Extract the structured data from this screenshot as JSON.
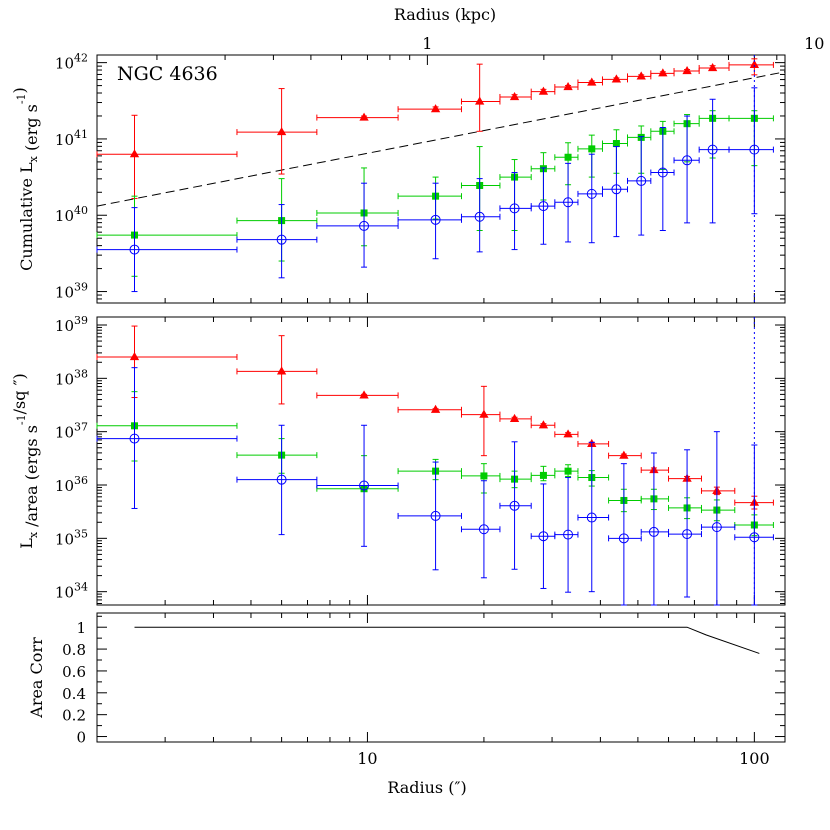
{
  "chart_data": {
    "type": "scatter",
    "x_scale": "log",
    "xlabel_bottom": "Radius (″)",
    "xlabel_top": "Radius (kpc)",
    "x_ticklabels_bottom": [
      "10",
      "100"
    ],
    "x_ticklabels_top": [
      "1",
      "10"
    ],
    "xlim": [
      2.0,
      120.0
    ],
    "kpc_per_arcsec": 0.07,
    "colors": {
      "red": "#ff0000",
      "green": "#00cc00",
      "blue": "#0000ff",
      "dashed": "#000000",
      "vline": "#0000ff"
    },
    "bin_edges": [
      1.0,
      4.0,
      7.4,
      12.0,
      17.5,
      22.0,
      26.5,
      30.5,
      35.0,
      40.0,
      47.0,
      54.0,
      62.0,
      71.0,
      82.0,
      92.0,
      112.0
    ],
    "x_centers": [
      2.5,
      6.0,
      9.8,
      15.0,
      19.5,
      24.0,
      28.5,
      33.0,
      38.0,
      44.0,
      51.0,
      58.0,
      67.0,
      78.0,
      100.0
    ],
    "vertical_line_x": 100.0,
    "panels": [
      {
        "id": "cumulative",
        "ylabel": "Cumulative L",
        "ylabel_sub": "x",
        "ylabel_rest": "(erg s",
        "ylabel_sup": "-1",
        "ylabel_end": ")",
        "y_scale": "log",
        "ylim_log": [
          38.85,
          42.1
        ],
        "y_tick_exponents": [
          "39",
          "40",
          "41",
          "42"
        ],
        "annotation": "NGC 4636",
        "dashed_line": {
          "x": [
            2.0,
            120.0
          ],
          "y_log": [
            40.12,
            41.88
          ]
        },
        "series": [
          {
            "color": "red",
            "marker": "triangle-filled",
            "y_log": [
              40.8,
              41.09,
              41.28,
              41.39,
              41.49,
              41.55,
              41.62,
              41.68,
              41.74,
              41.78,
              41.82,
              41.86,
              41.89,
              41.93
            ],
            "x_idx": [
              0,
              1,
              2,
              3,
              4,
              5,
              6,
              7,
              8,
              9,
              10,
              11,
              12,
              13,
              14
            ],
            "y_log_full": [
              40.8,
              41.09,
              41.28,
              41.39,
              41.49,
              41.55,
              41.62,
              41.68,
              41.74,
              41.78,
              41.82,
              41.86,
              41.89,
              41.93,
              41.97
            ],
            "err_lo_log": [
              40.22,
              40.54,
              41.26,
              41.36,
              41.1,
              41.52,
              41.59,
              41.66,
              41.72,
              41.76,
              41.8,
              41.84,
              41.87,
              41.9,
              41.84
            ],
            "err_hi_log": [
              41.31,
              41.66,
              41.3,
              41.42,
              41.98,
              41.58,
              41.65,
              41.7,
              41.76,
              41.8,
              41.84,
              41.88,
              41.91,
              41.96,
              42.05
            ]
          },
          {
            "color": "green",
            "marker": "square-filled",
            "y_log_full": [
              39.74,
              39.93,
              40.03,
              40.25,
              40.39,
              40.5,
              40.61,
              40.76,
              40.87,
              40.94,
              41.02,
              41.1,
              41.2,
              41.27,
              41.27
            ],
            "err_lo_log": [
              39.2,
              39.4,
              39.6,
              39.95,
              39.8,
              39.8,
              40.2,
              40.4,
              40.5,
              40.55,
              40.55,
              40.6,
              40.7,
              40.75,
              40.65
            ],
            "err_hi_log": [
              40.25,
              40.48,
              40.62,
              40.5,
              40.9,
              40.73,
              40.82,
              40.95,
              41.05,
              41.12,
              41.17,
              41.23,
              41.32,
              41.37,
              41.37
            ]
          },
          {
            "color": "blue",
            "marker": "circle-open",
            "y_log_full": [
              39.55,
              39.68,
              39.86,
              39.94,
              39.98,
              40.09,
              40.12,
              40.17,
              40.28,
              40.34,
              40.45,
              40.56,
              40.72,
              40.86,
              40.86
            ],
            "err_lo_log": [
              39.0,
              39.18,
              39.32,
              39.43,
              39.52,
              39.55,
              39.62,
              39.65,
              39.64,
              39.72,
              39.74,
              39.8,
              39.9,
              39.9,
              40.02
            ],
            "err_hi_log": [
              40.1,
              40.14,
              40.42,
              40.42,
              40.48,
              40.56,
              40.62,
              40.68,
              40.8,
              40.9,
              41.03,
              41.15,
              41.3,
              41.52,
              41.67
            ]
          }
        ]
      },
      {
        "id": "surface",
        "ylabel": "L",
        "ylabel_sub": "x",
        "ylabel_rest": "/area (ergs s",
        "ylabel_sup": "-1",
        "ylabel_end": "/sq ″)",
        "y_scale": "log",
        "ylim_log": [
          33.75,
          39.15
        ],
        "y_tick_exponents": [
          "34",
          "35",
          "36",
          "37",
          "38",
          "39"
        ],
        "series": [
          {
            "color": "red",
            "marker": "triangle-filled",
            "y_log_full": [
              38.4,
              38.13,
              37.68,
              37.41,
              37.32,
              37.24,
              37.12,
              36.95,
              36.77,
              36.55,
              36.28,
              36.12,
              35.89,
              35.67
            ],
            "err_lo_log": [
              37.64,
              37.52,
              37.66,
              37.39,
              36.55,
              37.21,
              37.09,
              36.92,
              36.74,
              36.52,
              36.24,
              36.08,
              35.82,
              35.55
            ],
            "err_hi_log": [
              38.98,
              38.8,
              37.7,
              37.43,
              37.85,
              37.27,
              37.15,
              36.98,
              36.8,
              36.58,
              36.32,
              36.16,
              35.96,
              35.79
            ]
          },
          {
            "color": "green",
            "marker": "square-filled",
            "y_log_full": [
              37.11,
              36.56,
              35.93,
              36.26,
              36.17,
              36.11,
              36.18,
              36.26,
              36.14,
              35.71,
              35.74,
              35.57,
              35.53,
              35.25
            ],
            "err_lo_log": [
              36.45,
              36.22,
              35.88,
              36.1,
              35.85,
              35.95,
              36.08,
              36.16,
              35.98,
              35.5,
              35.54,
              35.37,
              35.33,
              35.05
            ],
            "err_hi_log": [
              37.75,
              36.87,
              36.55,
              36.48,
              36.4,
              36.26,
              36.35,
              36.38,
              36.27,
              35.92,
              35.92,
              35.76,
              35.72,
              35.44
            ]
          },
          {
            "color": "blue",
            "marker": "circle-open",
            "y_log_full": [
              36.87,
              36.1,
              35.99,
              35.42,
              35.17,
              35.61,
              35.04,
              35.07,
              35.39,
              35.0,
              35.12,
              35.08,
              35.21,
              35.02
            ],
            "err_lo_log": [
              35.56,
              35.07,
              34.85,
              34.41,
              34.26,
              34.42,
              34.06,
              33.99,
              34.0,
              33.65,
              33.65,
              33.9,
              33.7,
              33.7
            ],
            "err_hi_log": [
              38.2,
              37.12,
              37.12,
              36.43,
              36.08,
              36.81,
              36.02,
              36.14,
              36.8,
              36.4,
              36.6,
              36.66,
              37.0,
              36.75
            ]
          }
        ],
        "x_idx_surface": [
          0,
          1,
          2,
          3,
          4,
          5,
          6,
          7,
          8,
          9,
          10,
          11,
          12,
          13
        ],
        "x_centers_surface": [
          2.5,
          6.0,
          9.8,
          15.0,
          20.0,
          24.0,
          28.5,
          33.0,
          38.0,
          46.0,
          55.0,
          67.0,
          80.0,
          100.0
        ],
        "bin_edges_surface": [
          1.0,
          4.5,
          7.4,
          12.0,
          17.5,
          22.0,
          26.5,
          30.5,
          35.0,
          42.0,
          51.0,
          60.0,
          73.0,
          89.0,
          112.0
        ]
      },
      {
        "id": "areacorr",
        "ylabel": "Area Corr",
        "y_scale": "linear",
        "ylim": [
          -0.05,
          1.13
        ],
        "y_ticklabels": [
          "0",
          "0.2",
          "0.4",
          "0.6",
          "0.8",
          "1"
        ],
        "line": {
          "x": [
            2.5,
            67.0,
            75.0,
            103.0
          ],
          "y": [
            1.0,
            1.0,
            0.93,
            0.76
          ]
        }
      }
    ]
  }
}
